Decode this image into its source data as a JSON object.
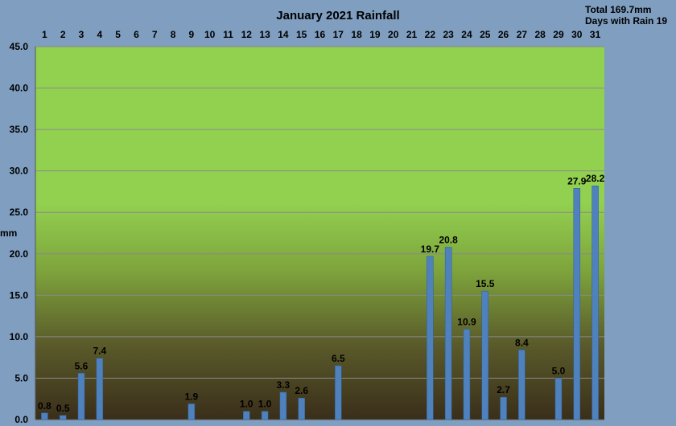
{
  "chart_data": {
    "type": "bar",
    "title": "January 2021 Rainfall",
    "summary": {
      "total_text": "Total 169.7mm",
      "days_text": "Days with Rain 19"
    },
    "ylabel": "mm",
    "xlabel": "",
    "ylim": [
      0,
      45
    ],
    "yticks": [
      "0.0",
      "5.0",
      "10.0",
      "15.0",
      "20.0",
      "25.0",
      "30.0",
      "35.0",
      "40.0",
      "45.0"
    ],
    "x_axis_position": "top",
    "grid": true,
    "categories": [
      "1",
      "2",
      "3",
      "4",
      "5",
      "6",
      "7",
      "8",
      "9",
      "10",
      "11",
      "12",
      "13",
      "14",
      "15",
      "16",
      "17",
      "18",
      "19",
      "20",
      "21",
      "22",
      "23",
      "24",
      "25",
      "26",
      "27",
      "28",
      "29",
      "30",
      "31"
    ],
    "values": [
      0.8,
      0.5,
      5.6,
      7.4,
      0,
      0,
      0,
      0,
      1.9,
      0,
      0,
      1.0,
      1.0,
      3.3,
      2.6,
      0,
      6.5,
      0,
      0,
      0,
      0,
      19.7,
      20.8,
      10.9,
      15.5,
      2.7,
      8.4,
      0,
      5.0,
      27.9,
      28.2
    ],
    "value_labels": [
      "0.8",
      "0.5",
      "5.6",
      "7.4",
      "",
      "",
      "",
      "",
      "1.9",
      "",
      "",
      "1.0",
      "1.0",
      "3.3",
      "2.6",
      "",
      "6.5",
      "",
      "",
      "",
      "",
      "19.7",
      "20.8",
      "10.9",
      "15.5",
      "2.7",
      "8.4",
      "",
      "5.0",
      "27.9",
      "28.2"
    ],
    "colors": {
      "bar": "#4f81bd",
      "background": "#7f9ec0",
      "plot_top": "#92d050",
      "plot_bottom": "#3a2e1a",
      "grid": "#8a8a8a"
    }
  }
}
